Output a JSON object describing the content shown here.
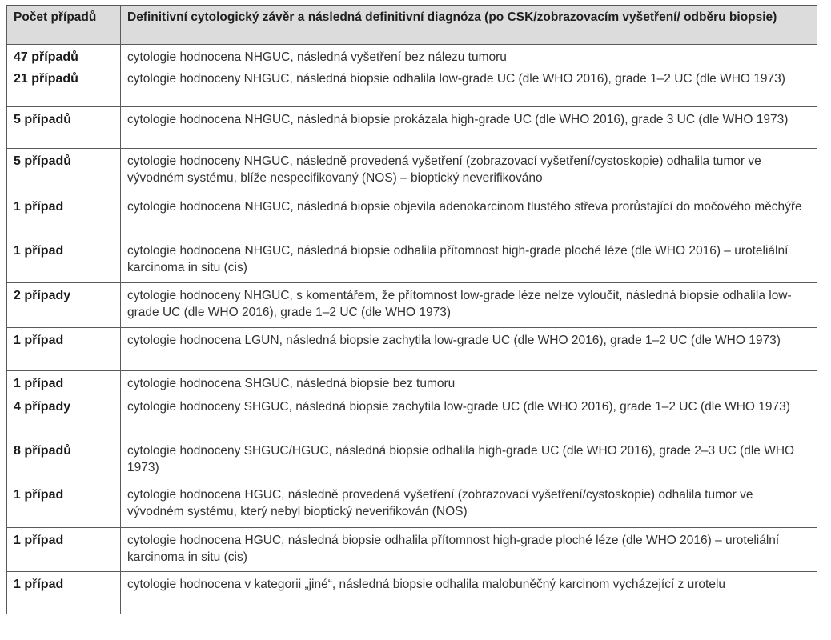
{
  "table": {
    "headers": [
      "Počet případů",
      "Definitivní cytologický závěr a následná definitivní diagnóza (po CSK/zobrazovacím vyšetření/ odběru biopsie)"
    ],
    "rows": [
      {
        "count": "47 případů",
        "text": "cytologie hodnocena NHGUC, následná vyšetření bez nálezu tumoru"
      },
      {
        "count": "21 případů",
        "text": "cytologie hodnoceny NHGUC, následná biopsie odhalila low-grade UC (dle WHO 2016), grade 1–2 UC (dle WHO 1973)"
      },
      {
        "count": "5 případů",
        "text": "cytologie hodnocena NHGUC, následná biopsie prokázala high-grade UC (dle WHO 2016), grade 3 UC (dle WHO 1973)"
      },
      {
        "count": "5 případů",
        "text": "cytologie hodnoceny NHGUC, následně provedená vyšetření (zobrazovací vyšetření/cystoskopie) odhalila tumor ve vývodném systému, blíže nespecifikovaný (NOS) – bioptický neverifikováno"
      },
      {
        "count": "1 případ",
        "text": "cytologie hodnocena NHGUC, následná biopsie objevila adenokarcinom tlustého střeva prorůstající do močového měchýře"
      },
      {
        "count": "1 případ",
        "text": "cytologie hodnocena NHGUC, následná biopsie odhalila přítomnost high-grade ploché léze (dle WHO 2016) – uroteliální karcinoma in situ (cis)"
      },
      {
        "count": "2 případy",
        "text": "cytologie hodnoceny NHGUC, s komentářem, že přítomnost low-grade léze nelze vyloučit, následná biopsie odhalila low-grade UC (dle WHO 2016), grade 1–2 UC (dle WHO 1973)"
      },
      {
        "count": "1 případ",
        "text": "cytologie hodnocena LGUN, následná biopsie zachytila low-grade UC (dle WHO 2016), grade 1–2 UC (dle WHO 1973)"
      },
      {
        "count": "1 případ",
        "text": "cytologie hodnocena SHGUC, následná biopsie bez tumoru"
      },
      {
        "count": "4 případy",
        "text": "cytologie hodnoceny SHGUC, následná biopsie zachytila low-grade UC (dle WHO 2016), grade 1–2 UC (dle WHO 1973)"
      },
      {
        "count": "8 případů",
        "text": "cytologie hodnoceny SHGUC/HGUC, následná biopsie odhalila high-grade UC (dle WHO 2016), grade 2–3 UC (dle WHO 1973)"
      },
      {
        "count": "1 případ",
        "text": "cytologie hodnocena HGUC, následně provedená vyšetření (zobrazovací vyšetření/cystoskopie) odhalila tumor ve vývodném systému, který nebyl bioptický neverifikován (NOS)"
      },
      {
        "count": "1 případ",
        "text": "cytologie hodnocena HGUC, následná biopsie odhalila přítomnost high-grade ploché léze (dle WHO 2016) – uroteliální karcinoma in situ (cis)"
      },
      {
        "count": "1 případ",
        "text": "cytologie hodnocena v kategorii „jiné“, následná biopsie odhalila malobuněčný karcinom vycházející z urotelu"
      }
    ]
  }
}
